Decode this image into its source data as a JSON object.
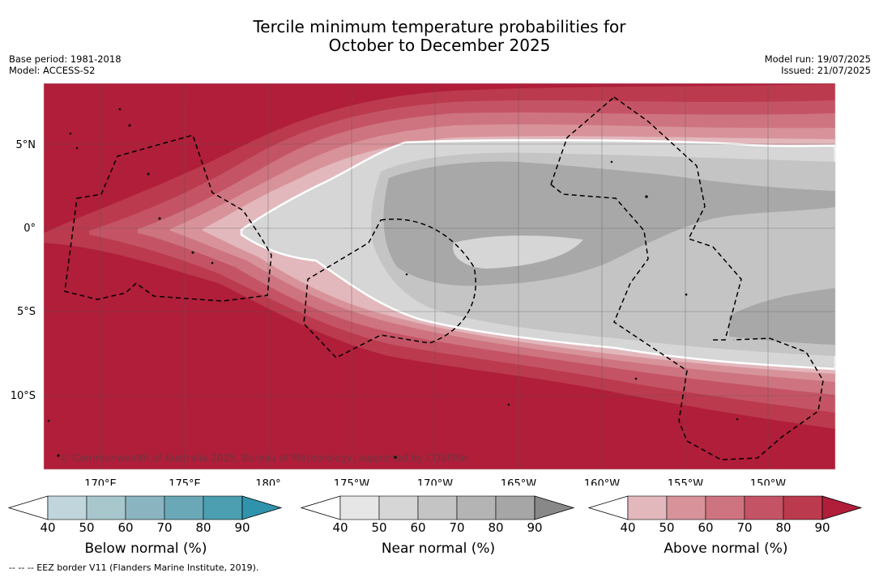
{
  "title": {
    "line1": "Tercile minimum temperature probabilities for",
    "line2": "October to December 2025"
  },
  "meta_left": {
    "base_period": "Base period: 1981-2018",
    "model": "Model: ACCESS-S2"
  },
  "meta_right": {
    "model_run": "Model run: 19/07/2025",
    "issued": "Issued: 21/07/2025"
  },
  "map": {
    "lat_labels": [
      "5°N",
      "0°",
      "5°S",
      "10°S"
    ],
    "lon_labels": [
      "170°E",
      "175°E",
      "180°",
      "175°W",
      "170°W",
      "165°W",
      "160°W",
      "155°W",
      "150°W"
    ],
    "copyright": "© Commonwealth of Australia 2025, Bureau of Meteorology, supported by COSPPac",
    "colors": {
      "above": [
        "#e2b8bd",
        "#d8939a",
        "#ce7480",
        "#c45465",
        "#bb3a4d",
        "#b01e3a"
      ],
      "near": [
        "#e6e6e6",
        "#d6d6d6",
        "#c4c4c4",
        "#b4b4b4",
        "#a6a6a6",
        "#888888"
      ],
      "below": [
        "#c0d5dc",
        "#a8c7cd",
        "#8ab5c0",
        "#6aa8b7",
        "#4b9fb1",
        "#2f93ac"
      ]
    }
  },
  "colorbars": [
    {
      "label": "Below normal (%)",
      "ticks": [
        "40",
        "50",
        "60",
        "70",
        "80",
        "90"
      ],
      "palette": "below"
    },
    {
      "label": "Near normal (%)",
      "ticks": [
        "40",
        "50",
        "60",
        "70",
        "80",
        "90"
      ],
      "palette": "near"
    },
    {
      "label": "Above normal (%)",
      "ticks": [
        "40",
        "50",
        "60",
        "70",
        "80",
        "90"
      ],
      "palette": "above"
    }
  ],
  "footer": "--  --  -- EEZ border V11 (Flanders Marine Institute, 2019)."
}
